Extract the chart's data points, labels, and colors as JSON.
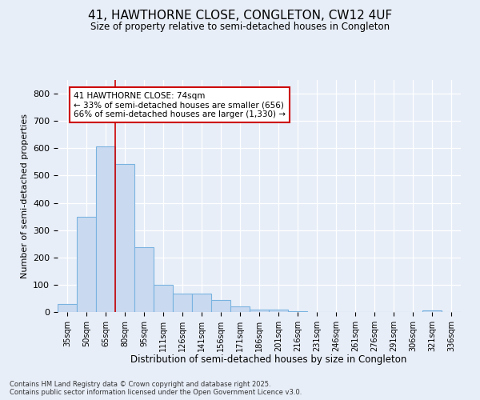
{
  "title1": "41, HAWTHORNE CLOSE, CONGLETON, CW12 4UF",
  "title2": "Size of property relative to semi-detached houses in Congleton",
  "xlabel": "Distribution of semi-detached houses by size in Congleton",
  "ylabel": "Number of semi-detached properties",
  "categories": [
    "35sqm",
    "50sqm",
    "65sqm",
    "80sqm",
    "95sqm",
    "111sqm",
    "126sqm",
    "141sqm",
    "156sqm",
    "171sqm",
    "186sqm",
    "201sqm",
    "216sqm",
    "231sqm",
    "246sqm",
    "261sqm",
    "276sqm",
    "291sqm",
    "306sqm",
    "321sqm",
    "336sqm"
  ],
  "values": [
    30,
    350,
    607,
    542,
    238,
    101,
    68,
    68,
    45,
    20,
    8,
    10,
    2,
    0,
    0,
    0,
    0,
    0,
    0,
    5,
    0
  ],
  "bar_color": "#c9daf0",
  "bar_edge_color": "#7ab3e0",
  "vline_x": 3,
  "vline_color": "#cc0000",
  "annotation_title": "41 HAWTHORNE CLOSE: 74sqm",
  "annotation_line1": "← 33% of semi-detached houses are smaller (656)",
  "annotation_line2": "66% of semi-detached houses are larger (1,330) →",
  "annotation_box_facecolor": "#ffffff",
  "annotation_box_edgecolor": "#cc0000",
  "ylim_max": 850,
  "yticks": [
    0,
    100,
    200,
    300,
    400,
    500,
    600,
    700,
    800
  ],
  "footer1": "Contains HM Land Registry data © Crown copyright and database right 2025.",
  "footer2": "Contains public sector information licensed under the Open Government Licence v3.0.",
  "bg_color": "#e8eef8"
}
